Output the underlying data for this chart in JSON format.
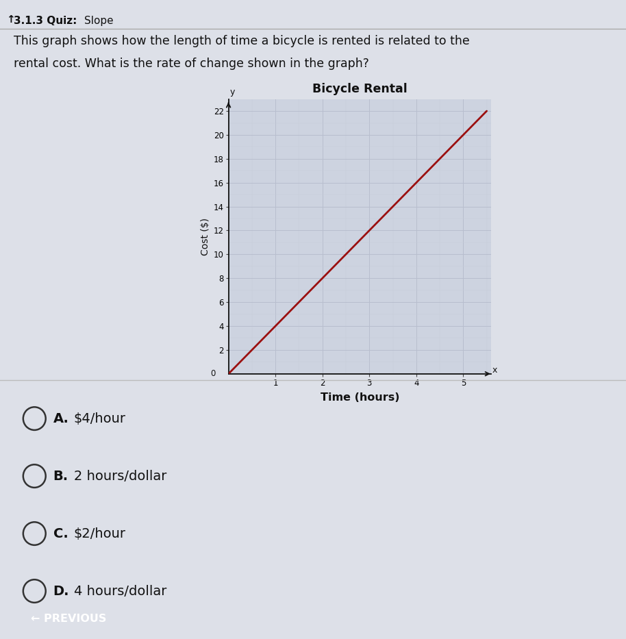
{
  "page_title_bold": "3.1.3 Quiz:",
  "page_title_normal": "Slope",
  "question_text_line1": "This graph shows how the length of time a bicycle is rented is related to the",
  "question_text_line2": "rental cost. What is the rate of change shown in the graph?",
  "chart_title": "Bicycle Rental",
  "xlabel": "Time (hours)",
  "ylabel": "Cost ($)",
  "xlim": [
    0,
    5.6
  ],
  "ylim": [
    0,
    23
  ],
  "xticks": [
    1,
    2,
    3,
    4,
    5
  ],
  "yticks": [
    2,
    4,
    6,
    8,
    10,
    12,
    14,
    16,
    18,
    20,
    22
  ],
  "line_x": [
    0,
    5.5
  ],
  "line_y": [
    0,
    22
  ],
  "line_color": "#9B1010",
  "line_width": 2.0,
  "bg_color": "#cdd3e0",
  "outer_bg": "#dde0e8",
  "grid_major_color": "#b8bece",
  "grid_minor_color": "#c8cdd8",
  "axis_color": "#111111",
  "options": [
    {
      "label": "A.",
      "text": "$4/hour"
    },
    {
      "label": "B.",
      "text": "2 hours/dollar"
    },
    {
      "label": "C.",
      "text": "$2/hour"
    },
    {
      "label": "D.",
      "text": "4 hours/dollar"
    }
  ],
  "prev_button_text": "← PREVIOUS",
  "prev_button_color": "#1a8a7a",
  "sep_color": "#bbbbbb"
}
